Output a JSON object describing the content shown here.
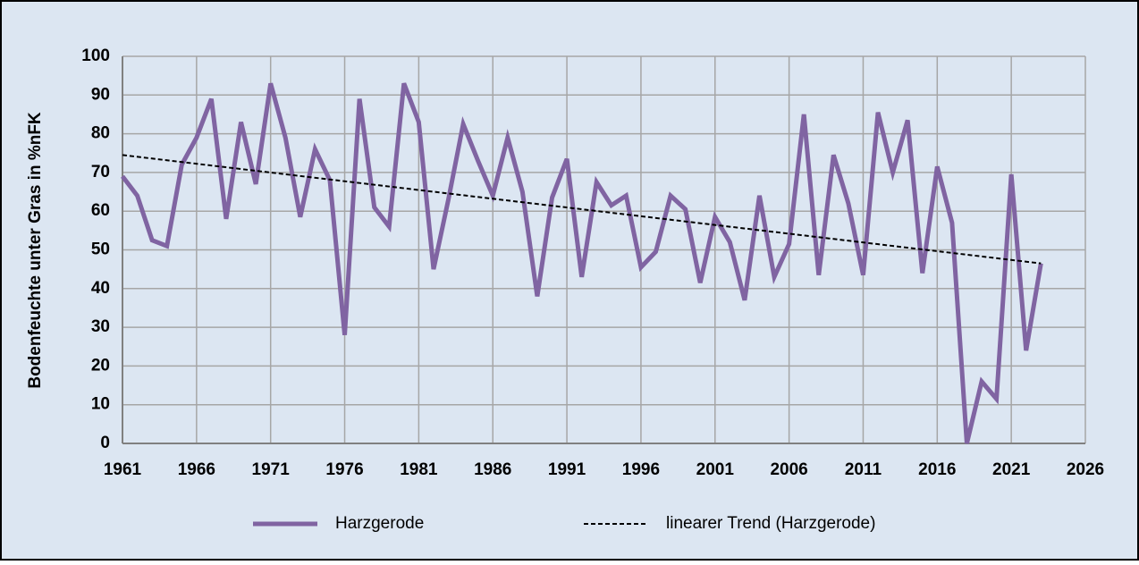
{
  "chart_data": {
    "type": "line",
    "ylabel": "Bodenfeuchte unter Gras in %nFK",
    "xlim": [
      1961,
      2026
    ],
    "xticks": [
      1961,
      1966,
      1971,
      1976,
      1981,
      1986,
      1991,
      1996,
      2001,
      2006,
      2011,
      2016,
      2021,
      2026
    ],
    "ylim": [
      0,
      100
    ],
    "yticks": [
      0,
      10,
      20,
      30,
      40,
      50,
      60,
      70,
      80,
      90,
      100
    ],
    "grid": true,
    "series": [
      {
        "name": "Harzgerode",
        "color": "#8064a2",
        "style": "solid",
        "x": [
          1961,
          1962,
          1963,
          1964,
          1965,
          1966,
          1967,
          1968,
          1969,
          1970,
          1971,
          1972,
          1973,
          1974,
          1975,
          1976,
          1977,
          1978,
          1979,
          1980,
          1981,
          1982,
          1983,
          1984,
          1985,
          1986,
          1987,
          1988,
          1989,
          1990,
          1991,
          1992,
          1993,
          1994,
          1995,
          1996,
          1997,
          1998,
          1999,
          2000,
          2001,
          2002,
          2003,
          2004,
          2005,
          2006,
          2007,
          2008,
          2009,
          2010,
          2011,
          2012,
          2013,
          2014,
          2015,
          2016,
          2017,
          2018,
          2019,
          2020,
          2021,
          2022,
          2023
        ],
        "values": [
          69,
          64,
          52.5,
          51,
          72,
          79,
          89,
          58,
          83,
          67,
          93,
          79,
          58.5,
          76,
          68,
          28,
          89,
          61,
          56,
          93,
          83,
          45,
          63,
          82.5,
          73,
          64,
          79,
          65,
          38,
          63.5,
          73.5,
          43,
          67.5,
          61.5,
          64,
          45.5,
          49.5,
          64,
          60.5,
          41.5,
          58.5,
          52,
          37,
          64,
          43,
          51.5,
          85,
          43.5,
          74.5,
          62,
          43.5,
          85.5,
          70,
          83.5,
          44,
          71.5,
          57,
          0,
          16,
          11.5,
          69.5,
          24,
          46.5
        ]
      },
      {
        "name": "linearer Trend (Harzgerode)",
        "color": "#000000",
        "style": "dashed",
        "x": [
          1961,
          2023
        ],
        "values": [
          74.5,
          46.5
        ]
      }
    ]
  }
}
